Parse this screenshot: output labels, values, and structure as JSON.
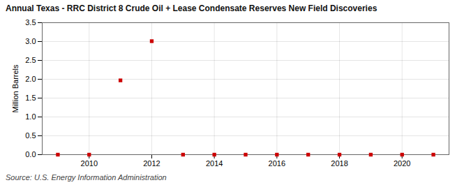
{
  "chart_data": {
    "type": "scatter",
    "title": "Annual Texas - RRC District 8 Crude Oil + Lease Condensate Reserves New Field Discoveries",
    "ylabel": "Million Barrels",
    "source": "Source: U.S. Energy Information Administration",
    "x": [
      2009,
      2010,
      2011,
      2012,
      2013,
      2014,
      2015,
      2016,
      2017,
      2018,
      2019,
      2020,
      2021
    ],
    "values": [
      0.0,
      0.0,
      1.97,
      3.01,
      0.0,
      0.0,
      0.0,
      0.0,
      0.0,
      0.0,
      0.0,
      0.0,
      0.0
    ],
    "color": "#cc0000",
    "marker": "square",
    "xlim": [
      2008.5,
      2021.5
    ],
    "ylim": [
      0.0,
      3.5
    ],
    "xticks": [
      2010,
      2012,
      2014,
      2016,
      2018,
      2020
    ],
    "yticks": [
      {
        "value": 0.0,
        "label": "0.0"
      },
      0.5,
      {
        "value": 1.0,
        "label": "1.0"
      },
      1.5,
      {
        "value": 2.0,
        "label": "2.0"
      },
      2.5,
      {
        "value": 3.0,
        "label": "3.0"
      },
      3.5
    ],
    "grid": true
  }
}
